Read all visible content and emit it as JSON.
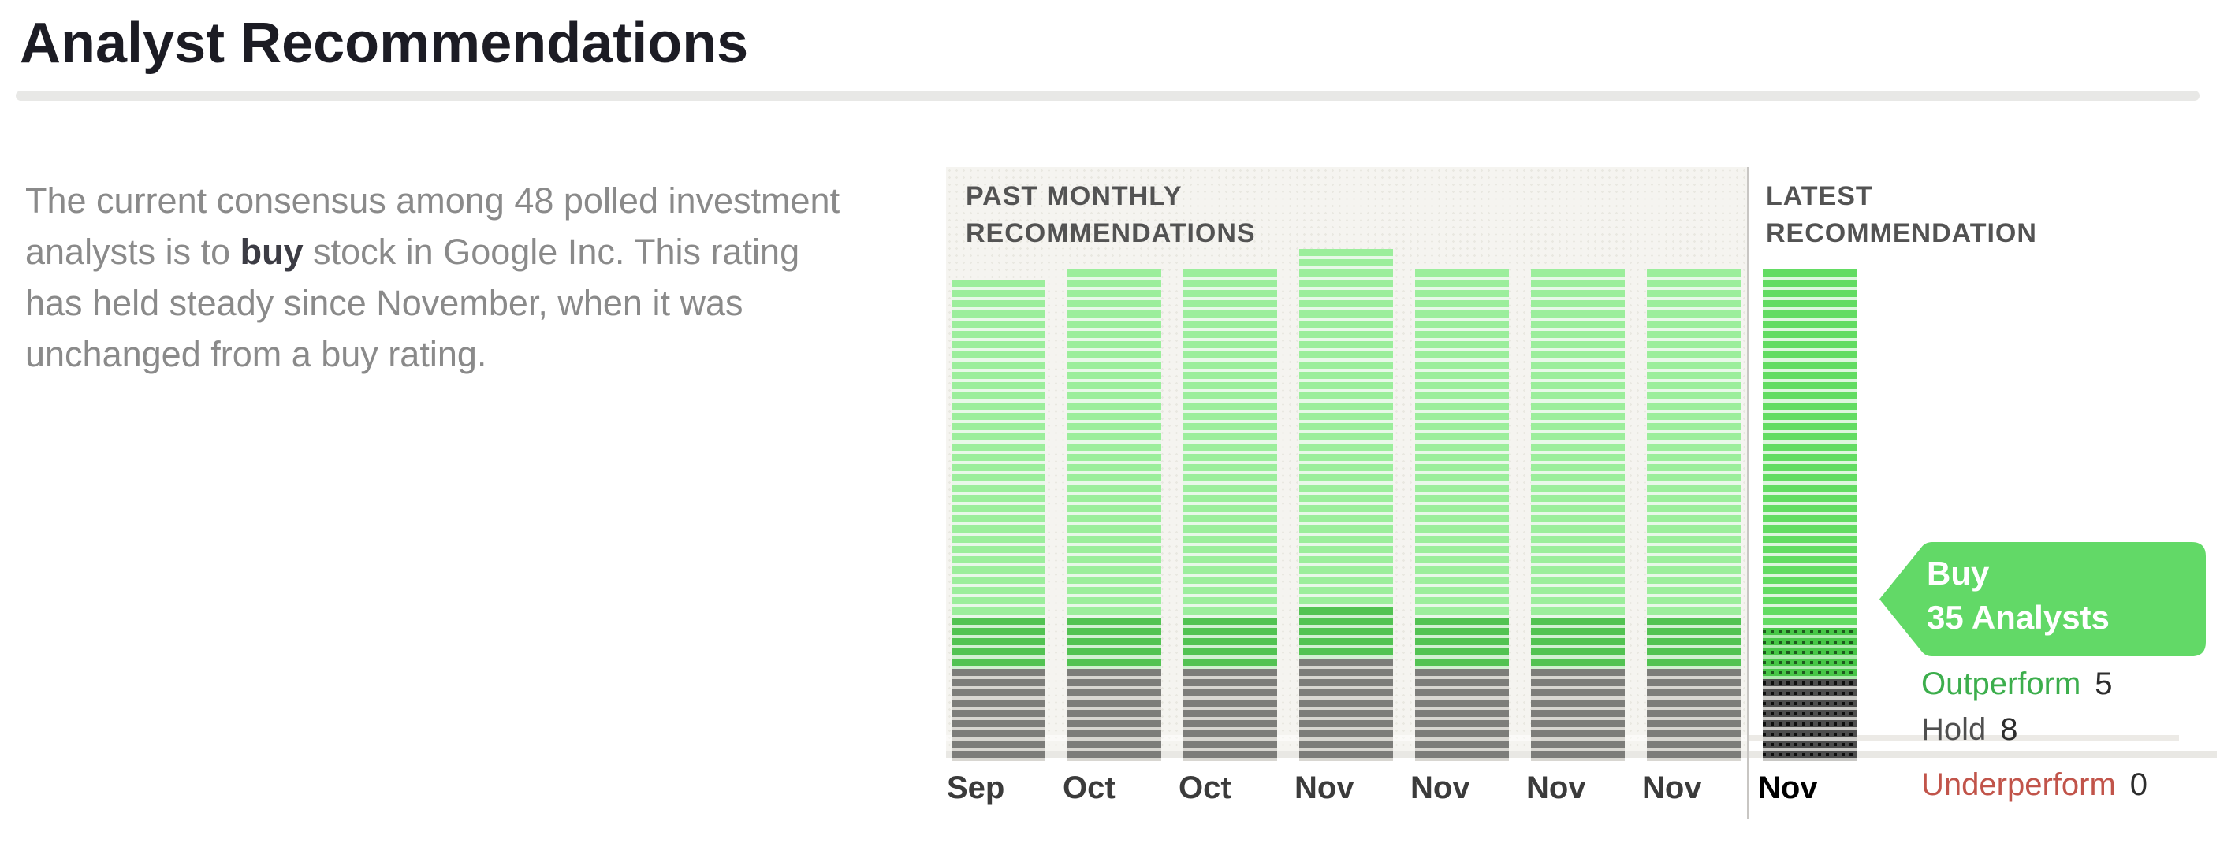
{
  "header": {
    "title": "Analyst Recommendations"
  },
  "summary": {
    "text_before": "The current consensus among 48 polled investment analysts is to ",
    "text_bold": "buy",
    "text_after": " stock in Google Inc. This rating has held steady since November, when it was unchanged from a buy rating."
  },
  "chart": {
    "past_section_label": "PAST MONTHLY RECOMMENDATIONS",
    "latest_section_label": "LATEST RECOMMENDATION",
    "badge": {
      "rating": "Buy",
      "analysts_label": "35 Analysts"
    },
    "legend": [
      {
        "label": "Outperform",
        "value": 5,
        "color": "#3cae4c"
      },
      {
        "label": "Hold",
        "value": 8,
        "color": "#4f4f4f"
      },
      {
        "label": "Underperform",
        "value": 0,
        "color": "#c1544a"
      }
    ],
    "latest_index": 7,
    "colors": {
      "badge_green": "#62d967",
      "number_text": "#2d2d2d",
      "plot_background": "#f5f4f0",
      "past": {
        "buy": {
          "band": "#9cee9c",
          "gap": "#e8f8e8"
        },
        "outperform": {
          "band": "#52c352",
          "gap": "#d2f0d2"
        },
        "hold": {
          "band": "#7d7d7a",
          "gap": "#d8d6d1"
        },
        "underperform": {
          "band": "#cc6a5e",
          "gap": "#f0ddd8"
        }
      },
      "latest": {
        "buy": {
          "band": "#63dc63",
          "gap": "#def6de"
        },
        "outperform": {
          "band": "#47c647",
          "gap": "#abeaab",
          "dot": "#1d5a1d"
        },
        "hold": {
          "band": "#4d4d4d",
          "gap": "#c8c7c4",
          "dot": "#0e0e0e"
        },
        "underperform": {
          "band": "#c05448",
          "gap": "#eccfc9"
        }
      }
    }
  },
  "chart_data": {
    "type": "bar",
    "stacked": true,
    "unit": "analysts",
    "title": "Analyst Recommendations",
    "subtitle_left": "PAST MONTHLY RECOMMENDATIONS",
    "subtitle_right": "LATEST RECOMMENDATION",
    "categories": [
      "Sep",
      "Oct",
      "Oct",
      "Nov",
      "Nov",
      "Nov",
      "Nov",
      "Nov"
    ],
    "series": [
      {
        "name": "Buy",
        "values": [
          33,
          34,
          34,
          35,
          34,
          34,
          34,
          35
        ]
      },
      {
        "name": "Outperform",
        "values": [
          5,
          5,
          5,
          5,
          5,
          5,
          5,
          5
        ]
      },
      {
        "name": "Hold",
        "values": [
          9,
          9,
          9,
          10,
          9,
          9,
          9,
          8
        ]
      },
      {
        "name": "Underperform",
        "values": [
          0,
          0,
          0,
          0,
          0,
          0,
          0,
          0
        ]
      }
    ],
    "latest": {
      "rating": "Buy",
      "analysts": 35,
      "outperform": 5,
      "hold": 8,
      "underperform": 0
    },
    "total_analysts": 48,
    "legend_position": "right",
    "grid": false
  }
}
